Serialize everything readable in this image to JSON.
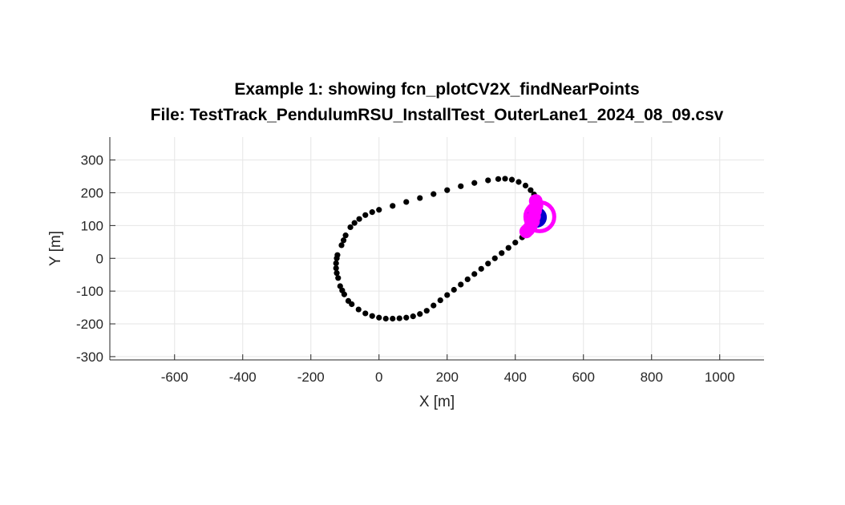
{
  "chart_data": {
    "type": "scatter",
    "title": "Example 1: showing fcn_plotCV2X_findNearPoints",
    "subtitle": "File: TestTrack_PendulumRSU_InstallTest_OuterLane1_2024_08_09.csv",
    "xlabel": "X [m]",
    "ylabel": "Y [m]",
    "xlim": [
      -790,
      1130
    ],
    "ylim": [
      -310,
      370
    ],
    "xticks": [
      -600,
      -400,
      -200,
      0,
      200,
      400,
      600,
      800,
      1000
    ],
    "yticks": [
      -300,
      -200,
      -100,
      0,
      100,
      200,
      300
    ],
    "grid": true,
    "series": [
      {
        "color": "#000000",
        "marker": "dot",
        "points": [
          [
            440,
            80
          ],
          [
            420,
            64
          ],
          [
            400,
            48
          ],
          [
            380,
            32
          ],
          [
            360,
            16
          ],
          [
            340,
            0
          ],
          [
            320,
            -16
          ],
          [
            300,
            -32
          ],
          [
            280,
            -48
          ],
          [
            260,
            -64
          ],
          [
            240,
            -80
          ],
          [
            220,
            -96
          ],
          [
            200,
            -112
          ],
          [
            180,
            -128
          ],
          [
            160,
            -144
          ],
          [
            140,
            -160
          ],
          [
            120,
            -170
          ],
          [
            100,
            -177
          ],
          [
            80,
            -181
          ],
          [
            60,
            -183
          ],
          [
            40,
            -184
          ],
          [
            20,
            -184
          ],
          [
            0,
            -181
          ],
          [
            -20,
            -176
          ],
          [
            -40,
            -168
          ],
          [
            -60,
            -156
          ],
          [
            -80,
            -140
          ],
          [
            -90,
            -130
          ],
          [
            -102,
            -110
          ],
          [
            -108,
            -98
          ],
          [
            -114,
            -85
          ],
          [
            -120,
            -60
          ],
          [
            -124,
            -45
          ],
          [
            -126,
            -30
          ],
          [
            -126,
            -15
          ],
          [
            -124,
            0
          ],
          [
            -122,
            10
          ],
          [
            -110,
            40
          ],
          [
            -104,
            55
          ],
          [
            -98,
            70
          ],
          [
            -84,
            95
          ],
          [
            -72,
            108
          ],
          [
            -58,
            120
          ],
          [
            -40,
            132
          ],
          [
            -20,
            141
          ],
          [
            0,
            148
          ],
          [
            40,
            160
          ],
          [
            80,
            172
          ],
          [
            120,
            184
          ],
          [
            160,
            196
          ],
          [
            200,
            208
          ],
          [
            240,
            220
          ],
          [
            280,
            230
          ],
          [
            320,
            238
          ],
          [
            350,
            242
          ],
          [
            370,
            243
          ],
          [
            390,
            240
          ],
          [
            410,
            233
          ],
          [
            430,
            222
          ],
          [
            445,
            208
          ],
          [
            455,
            195
          ],
          [
            460,
            185
          ]
        ]
      },
      {
        "color": "#0000cc",
        "marker": "circle",
        "points": [
          [
            462,
            125
          ]
        ]
      },
      {
        "color": "#ff00ff",
        "marker": "dot",
        "points": [
          [
            460,
            175
          ],
          [
            462,
            160
          ],
          [
            458,
            145
          ],
          [
            455,
            128
          ],
          [
            452,
            112
          ],
          [
            445,
            98
          ],
          [
            438,
            88
          ],
          [
            432,
            82
          ]
        ]
      },
      {
        "color": "#ff00ff",
        "marker": "ring",
        "points": [
          [
            472,
            127
          ]
        ]
      }
    ]
  }
}
